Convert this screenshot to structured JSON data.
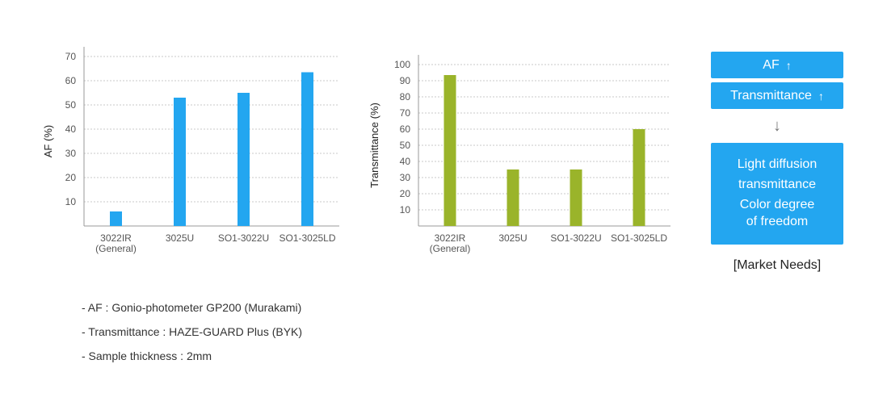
{
  "chart_data": [
    {
      "type": "bar",
      "ylabel": "AF (%)",
      "xlabel": "",
      "categories": [
        [
          "3022IR",
          "(General)"
        ],
        [
          "3025U"
        ],
        [
          "SO1-3022U"
        ],
        [
          "SO1-3025LD"
        ]
      ],
      "values": [
        6,
        53,
        55,
        63.5
      ],
      "ylim": [
        0,
        70
      ],
      "yticks": [
        10,
        20,
        30,
        40,
        50,
        60,
        70
      ],
      "grid": true,
      "color": "#23a6f0"
    },
    {
      "type": "bar",
      "ylabel": "Transmittance (%)",
      "xlabel": "",
      "categories": [
        [
          "3022IR",
          "(General)"
        ],
        [
          "3025U"
        ],
        [
          "SO1-3022U"
        ],
        [
          "SO1-3025LD"
        ]
      ],
      "values": [
        93.5,
        35,
        35,
        60
      ],
      "ylim": [
        0,
        100
      ],
      "yticks": [
        10,
        20,
        30,
        40,
        50,
        60,
        70,
        80,
        90,
        100
      ],
      "grid": true,
      "color": "#9ab42a"
    }
  ],
  "market": {
    "af_label": "AF",
    "transmittance_label": "Transmittance",
    "arrow_up": "↑",
    "arrow_down": "↓",
    "needs_lines": [
      "Light diffusion",
      "transmittance",
      "Color degree",
      "of freedom"
    ],
    "caption": "[Market Needs]"
  },
  "notes": [
    "- AF : Gonio-photometer GP200 (Murakami)",
    "- Transmittance : HAZE-GUARD Plus (BYK)",
    "- Sample thickness : 2mm"
  ]
}
